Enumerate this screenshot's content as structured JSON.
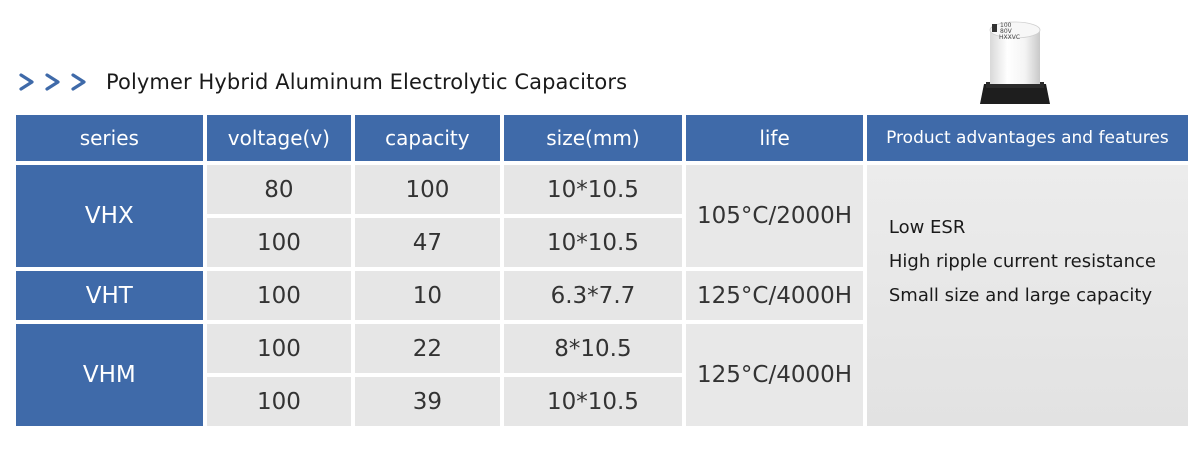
{
  "title": "Polymer Hybrid Aluminum Electrolytic Capacitors",
  "colors": {
    "accent_blue": "#3f6aa9",
    "cell_gray": "#e6e6e6",
    "text_dark": "#333333"
  },
  "product_image": {
    "icon": "capacitor-image",
    "markings": [
      "100",
      "80V",
      "HXXVC"
    ]
  },
  "table": {
    "headers": [
      "series",
      "voltage(v)",
      "capacity",
      "size(mm)",
      "life",
      "Product advantages and features"
    ],
    "groups": [
      {
        "series": "VHX",
        "life": "105°C/2000H",
        "rows": [
          {
            "voltage": "80",
            "capacity": "100",
            "size": "10*10.5"
          },
          {
            "voltage": "100",
            "capacity": "47",
            "size": "10*10.5"
          }
        ]
      },
      {
        "series": "VHT",
        "life": "125°C/4000H",
        "rows": [
          {
            "voltage": "100",
            "capacity": "10",
            "size": "6.3*7.7"
          }
        ]
      },
      {
        "series": "VHM",
        "life": "125°C/4000H",
        "rows": [
          {
            "voltage": "100",
            "capacity": "22",
            "size": "8*10.5"
          },
          {
            "voltage": "100",
            "capacity": "39",
            "size": "10*10.5"
          }
        ]
      }
    ],
    "advantages": [
      "Low ESR",
      "High ripple current resistance",
      "Small size and large capacity"
    ]
  }
}
